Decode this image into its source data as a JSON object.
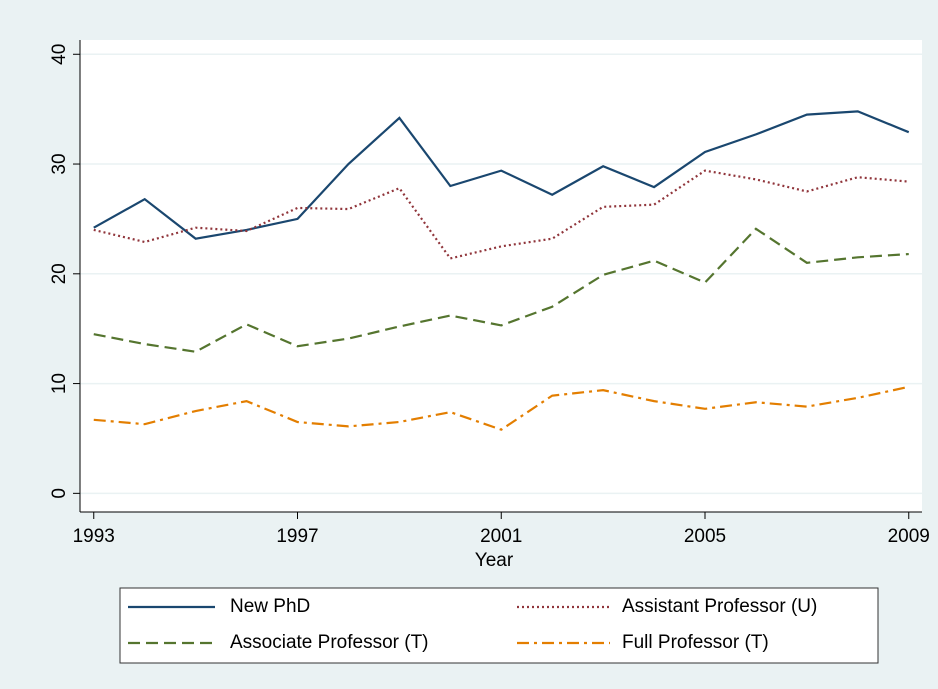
{
  "chart_data": {
    "type": "line",
    "x": [
      1993,
      1994,
      1995,
      1996,
      1997,
      1998,
      1999,
      2000,
      2001,
      2002,
      2003,
      2004,
      2005,
      2006,
      2007,
      2008,
      2009
    ],
    "x_label": "Year",
    "series": [
      {
        "name": "New PhD",
        "color": "#1a476f",
        "style": "solid",
        "values": [
          24.2,
          26.8,
          23.2,
          24.0,
          25.0,
          30.0,
          34.2,
          28.0,
          29.4,
          27.2,
          29.8,
          27.9,
          31.1,
          32.7,
          34.5,
          34.8,
          32.9
        ]
      },
      {
        "name": "Assistant Professor (U)",
        "color": "#90353b",
        "style": "dot",
        "values": [
          24.0,
          22.9,
          24.2,
          23.9,
          26.0,
          25.9,
          27.8,
          21.4,
          22.5,
          23.2,
          26.1,
          26.3,
          29.4,
          28.6,
          27.5,
          28.8,
          28.4
        ]
      },
      {
        "name": "Associate Professor (T)",
        "color": "#55752f",
        "style": "dash",
        "values": [
          14.5,
          13.6,
          12.9,
          15.4,
          13.4,
          14.1,
          15.2,
          16.2,
          15.3,
          17.0,
          19.9,
          21.2,
          19.2,
          24.1,
          21.0,
          21.5,
          21.8
        ]
      },
      {
        "name": "Full Professor (T)",
        "color": "#e37e00",
        "style": "dashdot",
        "values": [
          6.7,
          6.3,
          7.5,
          8.4,
          6.5,
          6.1,
          6.5,
          7.4,
          5.8,
          8.9,
          9.4,
          8.4,
          7.7,
          8.3,
          7.9,
          8.7,
          9.7
        ]
      }
    ],
    "xlim": [
      1992.73,
      2009.26
    ],
    "xticks": [
      1993,
      1997,
      2001,
      2005,
      2009
    ],
    "ylim": [
      -1.7,
      41.3
    ],
    "yticks": [
      0,
      10,
      20,
      30,
      40
    ],
    "grid": true,
    "legend": "bottom"
  }
}
